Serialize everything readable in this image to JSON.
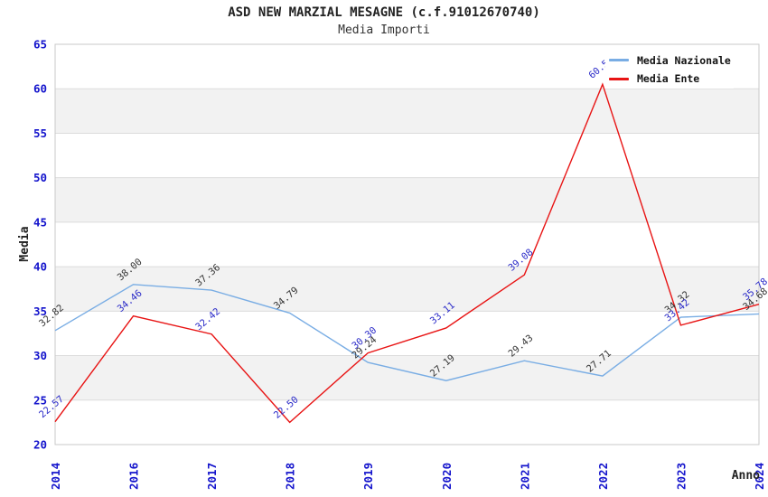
{
  "chart_data": {
    "type": "line",
    "title": "ASD NEW MARZIAL MESAGNE (c.f.91012670740)",
    "subtitle": "Media Importi",
    "xlabel": "Anno",
    "ylabel": "Media",
    "ylim": [
      20,
      65
    ],
    "yticks": [
      20,
      25,
      30,
      35,
      40,
      45,
      50,
      55,
      60,
      65
    ],
    "categories": [
      "2014",
      "2016",
      "2017",
      "2018",
      "2019",
      "2020",
      "2021",
      "2022",
      "2023",
      "2024"
    ],
    "series": [
      {
        "name": "Media Nazionale",
        "color": "#79ade4",
        "label_color": "#333333",
        "values": [
          32.82,
          38.0,
          37.36,
          34.79,
          29.24,
          27.19,
          29.43,
          27.71,
          34.32,
          34.68
        ],
        "labels": [
          "32.82",
          "38.00",
          "37.36",
          "34.79",
          "29.24",
          "27.19",
          "29.43",
          "27.71",
          "34.32",
          "34.68"
        ]
      },
      {
        "name": "Media Ente",
        "color": "#e81414",
        "label_color": "#2a2ac8",
        "values": [
          22.57,
          34.46,
          32.42,
          22.5,
          30.3,
          33.11,
          39.08,
          60.5,
          33.42,
          35.78
        ],
        "labels": [
          "22.57",
          "34.46",
          "32.42",
          "22.50",
          "30.30",
          "33.11",
          "39.08",
          "60.5",
          "33.42",
          "35.78"
        ]
      }
    ],
    "legend_position": "top-right",
    "grid": true,
    "style": {
      "band_fill": "#f2f2f2",
      "grid_color": "#dcdcdc",
      "axis_color": "#c9c9c9",
      "tick_color": "#1414cc"
    }
  }
}
